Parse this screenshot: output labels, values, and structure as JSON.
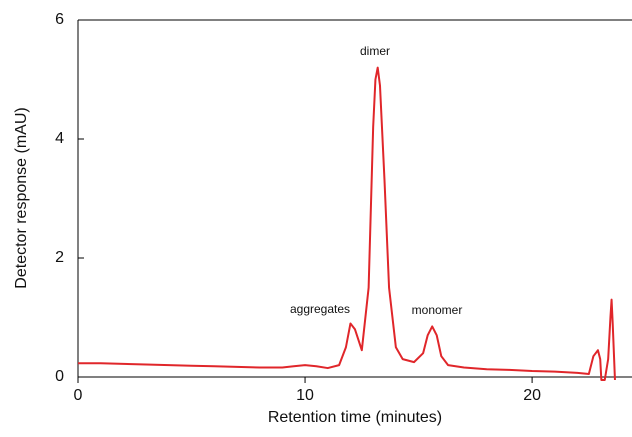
{
  "chart_data": {
    "type": "line",
    "xlabel": "Retention time (minutes)",
    "ylabel": "Detector response (mAU)",
    "annotations": [
      "aggregates",
      "dimer",
      "monomer"
    ],
    "xlim": [
      0,
      24.4
    ],
    "ylim": [
      0,
      6
    ],
    "xticks": [
      0,
      10,
      20
    ],
    "yticks": [
      0,
      2,
      4,
      6
    ],
    "series": [
      {
        "color": "#e0262a",
        "x": [
          0,
          1,
          2,
          3,
          4,
          5,
          6,
          7,
          8,
          9,
          9.5,
          10,
          10.5,
          11,
          11.5,
          11.8,
          12,
          12.2,
          12.5,
          12.8,
          13,
          13.1,
          13.2,
          13.3,
          13.5,
          13.7,
          14,
          14.3,
          14.8,
          15.2,
          15.4,
          15.6,
          15.8,
          16,
          16.3,
          17,
          18,
          19,
          20,
          21,
          22,
          22.5,
          22.7,
          22.9,
          23,
          23.05,
          23.2,
          23.35,
          23.45,
          23.5,
          23.55,
          23.65
        ],
        "values": [
          0.23,
          0.23,
          0.22,
          0.21,
          0.2,
          0.19,
          0.18,
          0.17,
          0.16,
          0.16,
          0.18,
          0.2,
          0.18,
          0.15,
          0.2,
          0.5,
          0.9,
          0.8,
          0.45,
          1.5,
          4.2,
          5.0,
          5.2,
          4.9,
          3.3,
          1.5,
          0.5,
          0.3,
          0.25,
          0.4,
          0.7,
          0.85,
          0.7,
          0.35,
          0.2,
          0.16,
          0.13,
          0.12,
          0.1,
          0.09,
          0.07,
          0.05,
          0.35,
          0.45,
          0.3,
          -0.05,
          -0.05,
          0.3,
          1.0,
          1.3,
          0.9,
          -0.05
        ]
      }
    ]
  }
}
